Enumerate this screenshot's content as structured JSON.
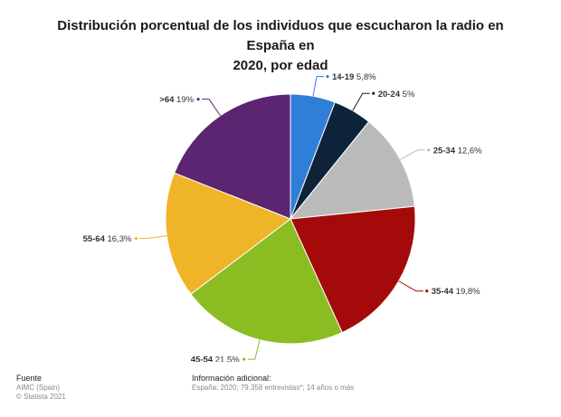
{
  "chart_data": {
    "type": "pie",
    "title_line1": "Distribución porcentual de los individuos que escucharon la radio en España en",
    "title_line2": "2020, por edad",
    "categories": [
      "14-19",
      "20-24",
      "25-34",
      "35-44",
      "45-54",
      "55-64",
      ">64"
    ],
    "values": [
      5.8,
      5,
      12.6,
      19.8,
      21.5,
      16.3,
      19
    ],
    "value_labels": [
      "5,8%",
      "5%",
      "12,6%",
      "19,8%",
      "21,5%",
      "16,3%",
      "19%"
    ],
    "colors": [
      "#2f7ed8",
      "#0d233a",
      "#bbbbbb",
      "#a50a0a",
      "#8bbc21",
      "#f0b429",
      "#5c2572"
    ],
    "legend": "none"
  },
  "footer": {
    "source_title": "Fuente",
    "source_line1": "AIMC (Spain)",
    "source_line2": "© Statista 2021",
    "info_title": "Información adicional:",
    "info_text": "España; 2020; 79.358 entrevistas*; 14 años o más"
  }
}
